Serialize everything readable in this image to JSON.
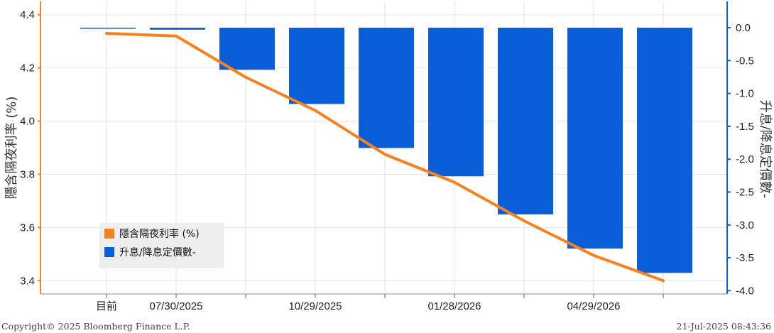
{
  "chart_data": {
    "type": "bar+line",
    "categories": [
      "目前",
      "07/30/2025",
      "",
      "10/29/2025",
      "",
      "01/28/2026",
      "",
      "04/29/2026",
      ""
    ],
    "x_tick_labels": [
      "目前",
      "07/30/2025",
      "10/29/2025",
      "01/28/2026",
      "04/29/2026"
    ],
    "line_series": {
      "name": "隱含隔夜利率 (%)",
      "color": "#f5821f",
      "values": [
        4.33,
        4.32,
        4.165,
        4.04,
        3.875,
        3.77,
        3.625,
        3.495,
        3.4
      ],
      "axis": "left"
    },
    "bar_series": {
      "name": "升息/降息定價數-",
      "color": "#0a5fd8",
      "values": [
        0.0,
        -0.03,
        -0.64,
        -1.16,
        -1.83,
        -2.26,
        -2.84,
        -3.36,
        -3.73
      ],
      "axis": "right"
    },
    "left_axis": {
      "label": "隱含隔夜利率 (%)",
      "ylim": [
        3.35,
        4.45
      ],
      "ticks": [
        3.4,
        3.6,
        3.8,
        4.0,
        4.2,
        4.4
      ],
      "tick_labels": [
        "3.4",
        "3.6",
        "3.8",
        "4.0",
        "4.2",
        "4.4"
      ]
    },
    "right_axis": {
      "label": "升息/降息定價數-",
      "ylim": [
        -4.05,
        0.4
      ],
      "ticks": [
        0.0,
        -0.5,
        -1.0,
        -1.5,
        -2.0,
        -2.5,
        -3.0,
        -3.5,
        -4.0
      ],
      "tick_labels": [
        "0.0",
        "-0.5",
        "-1.0",
        "-1.5",
        "-2.0",
        "-2.5",
        "-3.0",
        "-3.5",
        "-4.0"
      ]
    },
    "grid": true,
    "legend_position": "bottom-left",
    "legend": [
      "隱含隔夜利率 (%)",
      "升息/降息定價數-"
    ]
  },
  "footer": {
    "copyright": "Copyright© 2025 Bloomberg Finance L.P.",
    "timestamp": "21-Jul-2025 08:43:36"
  }
}
